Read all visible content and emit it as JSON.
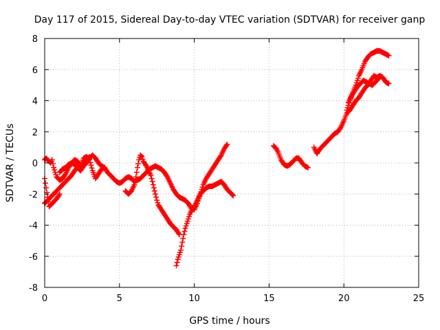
{
  "chart_data": {
    "type": "scatter",
    "title": "Day 117 of 2015, Sidereal Day-to-day VTEC variation (SDTVAR) for receiver ganp",
    "xlabel": "GPS time / hours",
    "ylabel": "SDTVAR / TECUs",
    "xlim": [
      0,
      25
    ],
    "ylim": [
      -8,
      8
    ],
    "x_ticks": [
      0,
      5,
      10,
      15,
      20,
      25
    ],
    "y_ticks": [
      -8,
      -6,
      -4,
      -2,
      0,
      2,
      4,
      6,
      8
    ],
    "grid": true,
    "legend": "none",
    "marker": "+",
    "color": "#ff0000",
    "series": [
      {
        "x": [
          0.0,
          0.1,
          0.2,
          0.3,
          0.4,
          0.5,
          0.6,
          0.7,
          0.8,
          1.0,
          1.2,
          1.4,
          1.6,
          1.8,
          2.0,
          2.2,
          2.4,
          2.6,
          2.8,
          3.0,
          3.2,
          3.4,
          3.6,
          3.8,
          4.0,
          4.2,
          4.4,
          4.6,
          4.8,
          5.0,
          5.2,
          5.4,
          5.6,
          5.8,
          6.0,
          6.2,
          6.4,
          6.6,
          6.8,
          7.0,
          7.2,
          7.4,
          7.6,
          7.8,
          8.0
        ],
        "y": [
          0.2,
          0.3,
          0.2,
          0.1,
          0.0,
          0.2,
          -0.3,
          -0.6,
          -0.9,
          -1.1,
          -1.0,
          -0.7,
          -0.3,
          0.0,
          0.2,
          0.1,
          -0.2,
          0.3,
          0.4,
          0.2,
          -0.5,
          -1.0,
          -0.7,
          -0.4,
          -0.3,
          -0.6,
          -0.8,
          -1.0,
          -1.2,
          -1.3,
          -1.2,
          -1.0,
          -0.9,
          -1.0,
          -1.2,
          -1.1,
          -1.0,
          -0.8,
          -0.6,
          -0.4,
          -0.3,
          -0.2,
          -0.3,
          -0.4,
          -0.6
        ]
      },
      {
        "x": [
          0.0,
          0.2,
          0.4,
          0.6,
          0.8,
          1.0,
          1.2,
          1.4,
          1.6,
          1.8,
          2.0,
          2.2,
          2.4,
          2.6,
          2.8,
          3.0
        ],
        "y": [
          -2.6,
          -2.4,
          -2.2,
          -2.0,
          -1.8,
          -1.6,
          -1.4,
          -1.2,
          -1.0,
          -0.8,
          -0.5,
          -0.3,
          -0.2,
          0.0,
          0.2,
          0.4
        ]
      },
      {
        "x": [
          0.0,
          0.1,
          0.2,
          0.3,
          0.4,
          0.6,
          0.8,
          1.0
        ],
        "y": [
          -1.0,
          -1.6,
          -2.2,
          -2.8,
          -2.7,
          -2.5,
          -2.3,
          -2.0
        ]
      },
      {
        "x": [
          1.0,
          1.2,
          1.4,
          1.6,
          1.8,
          2.0,
          2.2,
          2.4,
          2.6,
          2.8,
          3.0,
          3.2,
          3.4,
          3.6,
          3.8,
          4.0
        ],
        "y": [
          -0.6,
          -0.4,
          -0.3,
          -0.1,
          0.0,
          -0.1,
          -0.3,
          -0.5,
          -0.2,
          0.0,
          0.3,
          0.5,
          0.3,
          0.0,
          -0.2,
          -0.3
        ]
      },
      {
        "x": [
          5.4,
          5.5,
          5.6,
          5.8,
          6.0,
          6.1,
          6.2,
          6.3,
          6.4,
          6.5,
          6.6,
          6.8,
          7.0,
          7.1,
          7.2,
          7.3,
          7.4,
          7.5,
          7.6,
          7.8,
          8.0,
          8.2,
          8.4,
          8.6,
          8.8,
          9.0
        ],
        "y": [
          -1.8,
          -1.9,
          -2.0,
          -1.8,
          -1.4,
          -0.9,
          -0.3,
          0.2,
          0.5,
          0.4,
          0.1,
          -0.2,
          -0.6,
          -0.8,
          -1.2,
          -1.6,
          -2.0,
          -2.4,
          -2.7,
          -3.0,
          -3.3,
          -3.6,
          -3.9,
          -4.1,
          -4.3,
          -4.6
        ]
      },
      {
        "x": [
          8.8,
          8.9,
          9.0,
          9.1,
          9.2,
          9.3,
          9.4,
          9.5,
          9.6,
          9.7,
          9.8,
          9.9,
          10.0
        ],
        "y": [
          -6.6,
          -6.2,
          -5.9,
          -5.6,
          -5.1,
          -4.6,
          -4.2,
          -3.9,
          -3.6,
          -3.3,
          -3.1,
          -2.9,
          -2.8
        ]
      },
      {
        "x": [
          8.0,
          8.2,
          8.4,
          8.6,
          8.8,
          9.0,
          9.2,
          9.4,
          9.6,
          9.8,
          10.0,
          10.2,
          10.4,
          10.6,
          10.8,
          11.0,
          11.2,
          11.4,
          11.6,
          11.8,
          12.0,
          12.2
        ],
        "y": [
          -0.6,
          -0.9,
          -1.3,
          -1.7,
          -2.0,
          -2.2,
          -2.3,
          -2.4,
          -2.6,
          -2.9,
          -3.0,
          -2.6,
          -2.0,
          -1.4,
          -1.0,
          -0.7,
          -0.4,
          -0.1,
          0.2,
          0.5,
          0.9,
          1.2
        ]
      },
      {
        "x": [
          10.0,
          10.2,
          10.4,
          10.6,
          10.8,
          11.0,
          11.2,
          11.4,
          11.6,
          11.8,
          12.0,
          12.2,
          12.4,
          12.6
        ],
        "y": [
          -2.8,
          -2.4,
          -2.0,
          -1.8,
          -1.6,
          -1.5,
          -1.5,
          -1.4,
          -1.3,
          -1.2,
          -1.4,
          -1.7,
          -1.9,
          -2.1
        ]
      },
      {
        "x": [
          15.3,
          15.4,
          15.5,
          15.6,
          15.8,
          16.0,
          16.2,
          16.4,
          16.6,
          16.8,
          17.0,
          17.2,
          17.4,
          17.6
        ],
        "y": [
          1.1,
          1.0,
          0.9,
          0.7,
          0.2,
          -0.1,
          -0.2,
          -0.1,
          0.1,
          0.3,
          0.3,
          0.0,
          -0.2,
          -0.3
        ]
      },
      {
        "x": [
          18.0,
          18.1,
          18.2,
          18.4,
          18.6,
          18.8,
          19.0,
          19.2,
          19.4,
          19.6,
          19.8,
          20.0,
          20.2,
          20.4,
          20.6,
          20.8,
          21.0,
          21.2,
          21.4,
          21.6,
          21.8,
          22.0,
          22.2,
          22.4,
          22.6,
          22.8,
          23.0
        ],
        "y": [
          1.0,
          0.8,
          0.6,
          0.9,
          1.1,
          1.3,
          1.5,
          1.7,
          1.9,
          2.0,
          2.3,
          2.7,
          3.2,
          3.4,
          3.7,
          4.0,
          4.2,
          4.5,
          4.8,
          5.0,
          5.3,
          5.6,
          5.5,
          5.6,
          5.5,
          5.2,
          5.1
        ]
      },
      {
        "x": [
          20.2,
          20.4,
          20.6,
          20.8,
          21.0,
          21.2,
          21.4,
          21.6,
          21.8,
          22.0,
          22.2,
          22.4,
          22.6,
          22.8,
          23.0
        ],
        "y": [
          3.4,
          4.0,
          4.5,
          5.0,
          5.6,
          6.0,
          6.5,
          6.8,
          7.0,
          7.1,
          7.2,
          7.2,
          7.1,
          7.0,
          6.9
        ]
      },
      {
        "x": [
          20.3,
          20.5,
          20.7,
          20.9,
          21.1,
          21.3,
          21.5,
          21.7,
          21.9,
          22.1,
          22.3
        ],
        "y": [
          3.9,
          4.3,
          4.6,
          4.9,
          5.1,
          5.3,
          5.2,
          5.1,
          5.0,
          5.2,
          5.4
        ]
      }
    ]
  }
}
